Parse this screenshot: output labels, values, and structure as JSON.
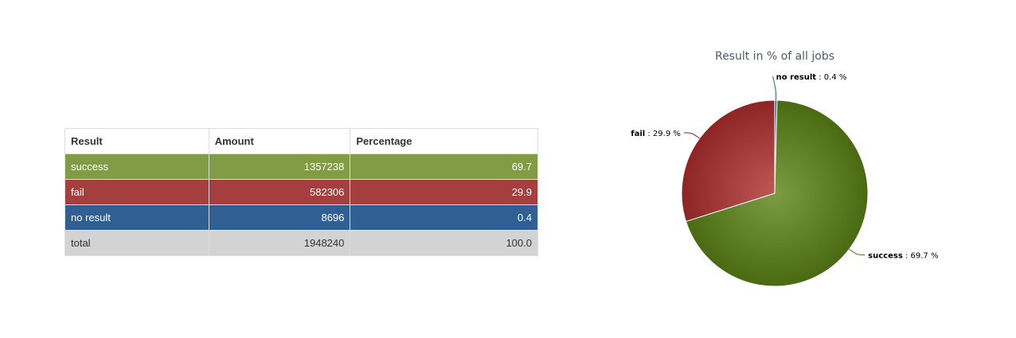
{
  "table": {
    "headers": {
      "result": "Result",
      "amount": "Amount",
      "percentage": "Percentage"
    },
    "rows": [
      {
        "result": "success",
        "amount": "1357238",
        "percentage": "69.7",
        "color": "#809c44"
      },
      {
        "result": "fail",
        "amount": "582306",
        "percentage": "29.9",
        "color": "#a53f3f"
      },
      {
        "result": "no result",
        "amount": "8696",
        "percentage": "0.4",
        "color": "#305f93"
      },
      {
        "result": "total",
        "amount": "1948240",
        "percentage": "100.0",
        "color": "#d3d3d3"
      }
    ]
  },
  "chart_data": {
    "type": "pie",
    "title": "Result in % of all jobs",
    "slices": [
      {
        "name": "no result",
        "value": 0.4,
        "label": ": 0.4 %",
        "color": "#2c5b95"
      },
      {
        "name": "success",
        "value": 69.7,
        "label": ": 69.7 %",
        "color": "#4a6a12"
      },
      {
        "name": "fail",
        "value": 29.9,
        "label": ": 29.9 %",
        "color": "#8e2525"
      }
    ]
  }
}
